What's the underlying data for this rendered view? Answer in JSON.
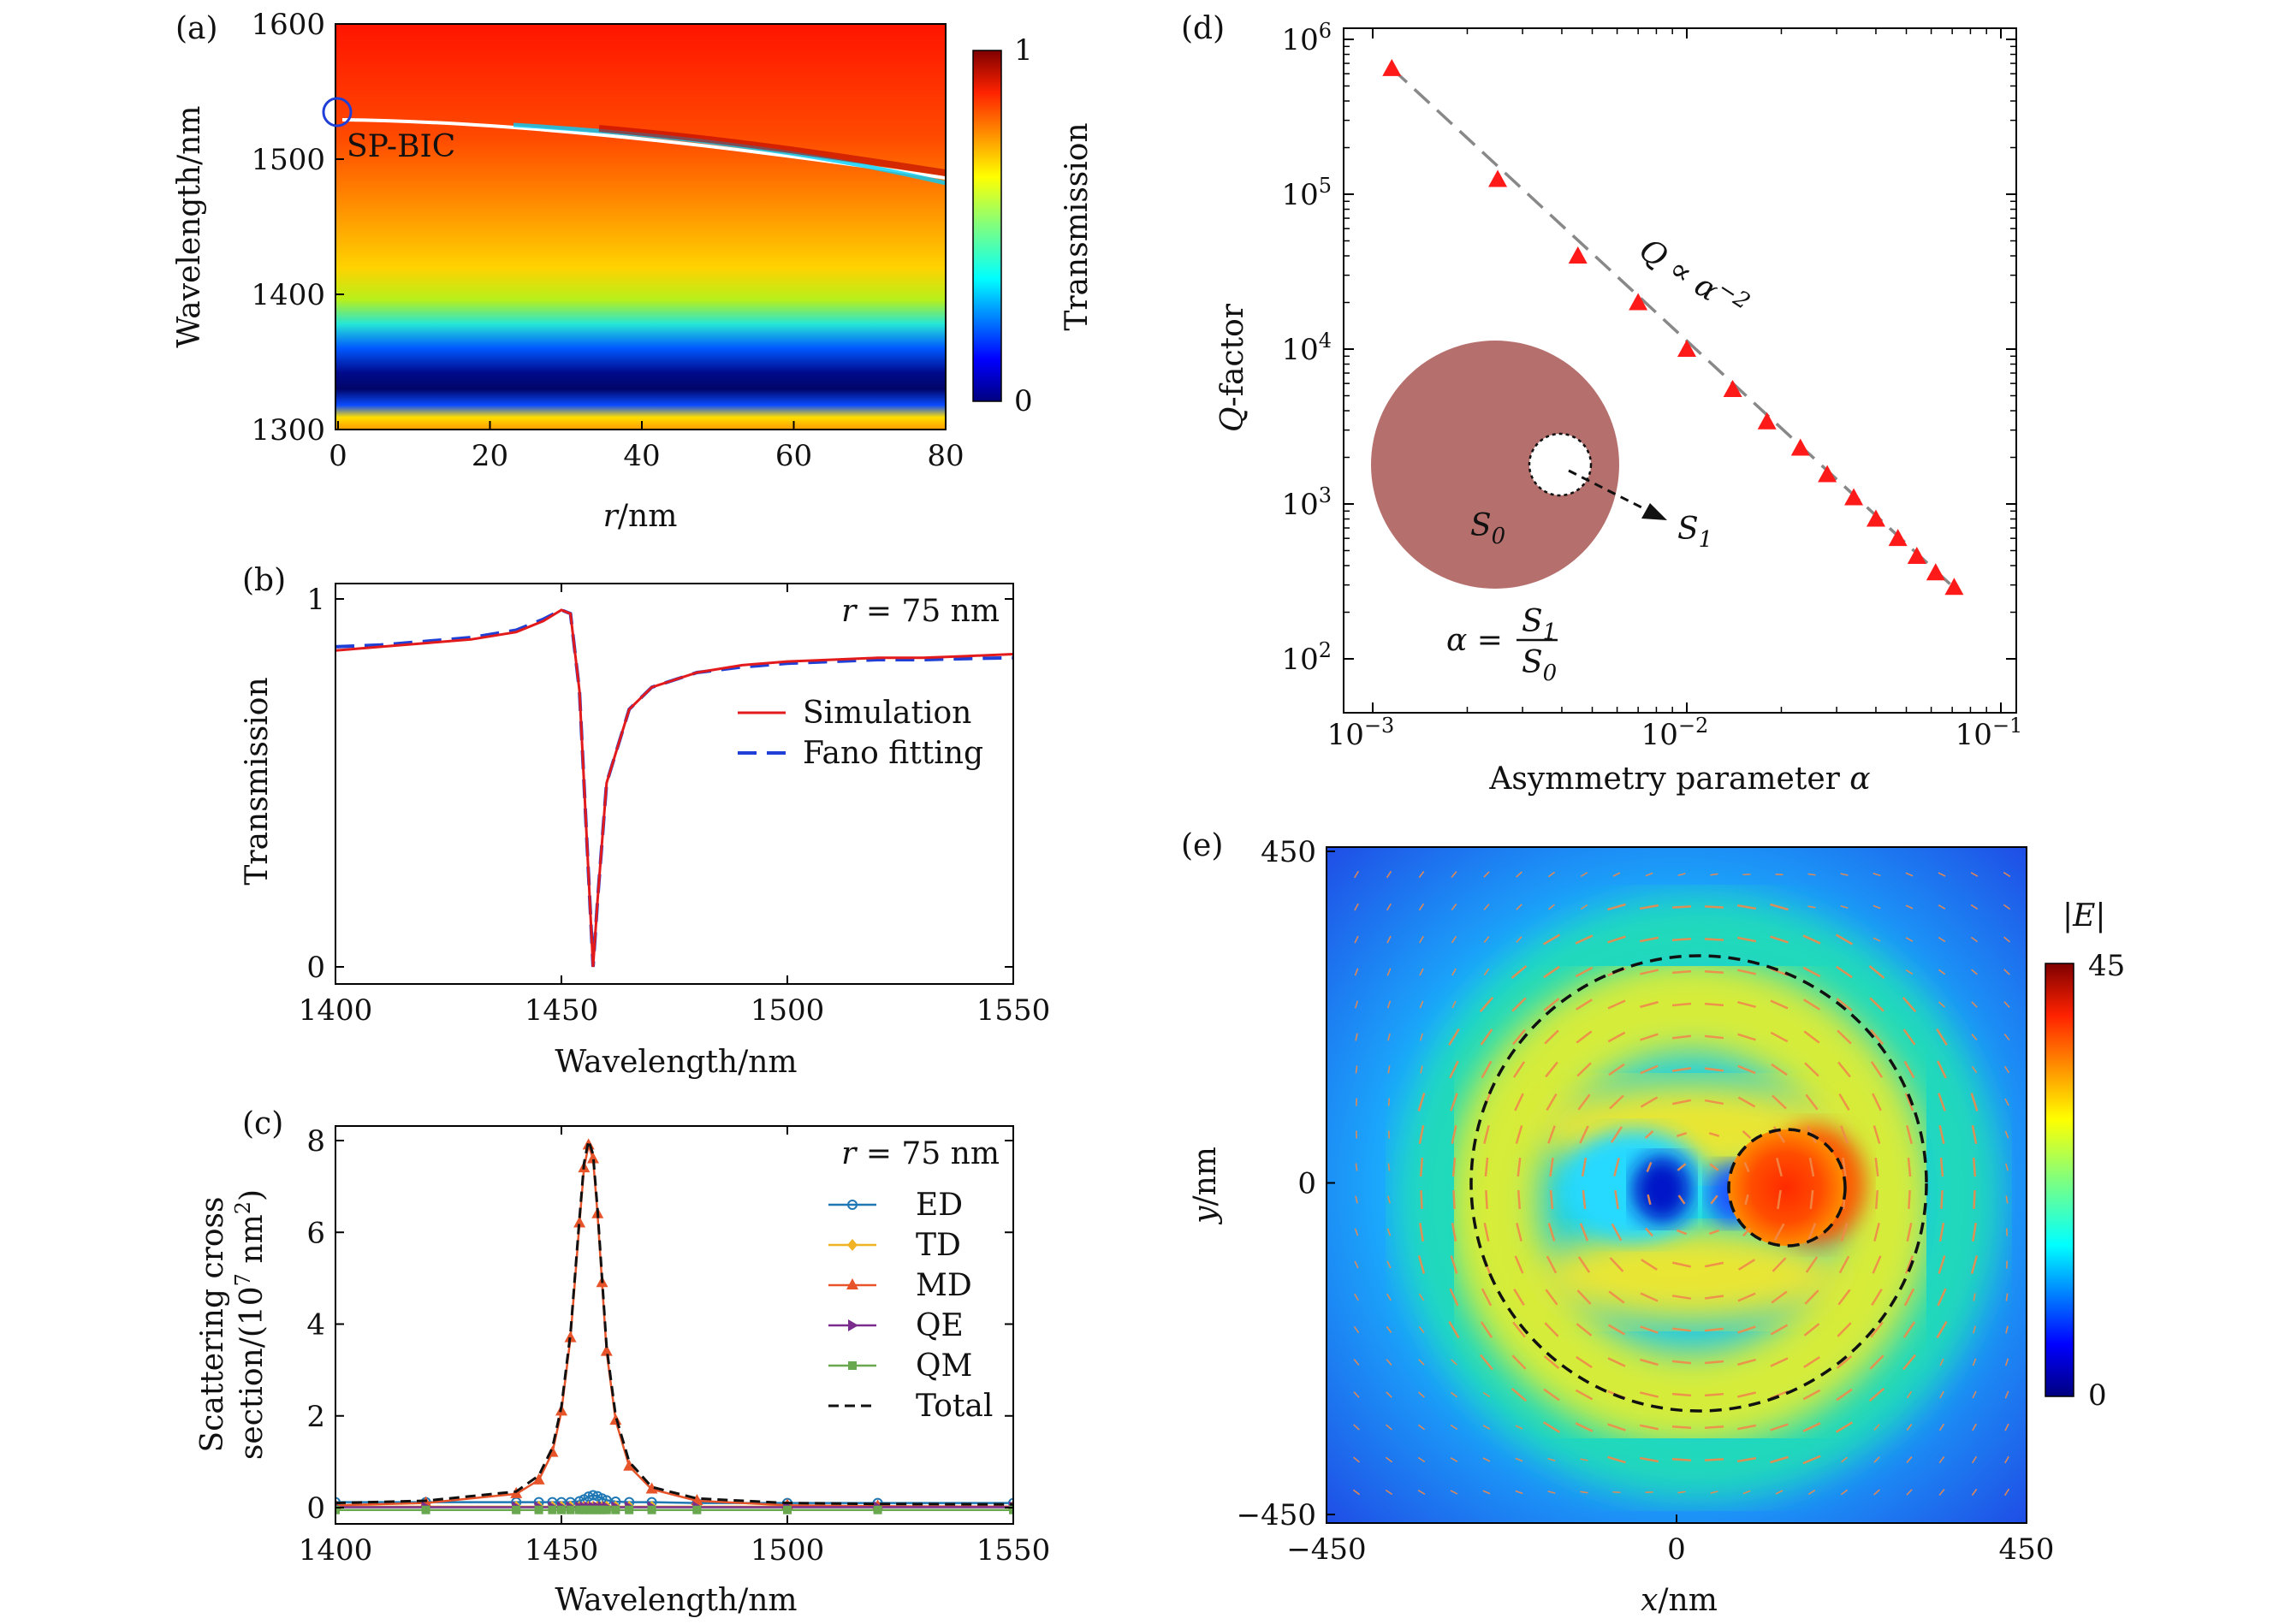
{
  "panels": {
    "a": {
      "label": "(a)",
      "xlabel_var": "r",
      "xlabel_unit": "/nm",
      "ylabel": "Wavelength/nm",
      "xticks": [
        "0",
        "20",
        "40",
        "60",
        "80"
      ],
      "yticks": [
        "1300",
        "1400",
        "1500",
        "1600"
      ],
      "colorbar_label": "Transmission",
      "colorbar_ticks": [
        "1",
        "0"
      ],
      "annotation": "SP-BIC"
    },
    "b": {
      "label": "(b)",
      "xlabel": "Wavelength/nm",
      "ylabel": "Transmission",
      "xticks": [
        "1400",
        "1450",
        "1500",
        "1550"
      ],
      "yticks": [
        "1",
        "0"
      ],
      "annot_var": "r",
      "annot_val": " = 75 nm",
      "legend": [
        "Simulation",
        "Fano fitting"
      ]
    },
    "c": {
      "label": "(c)",
      "xlabel": "Wavelength/nm",
      "ylabel_1": "Scattering cross",
      "ylabel_2a": "section/(10",
      "ylabel_2exp": "7",
      "ylabel_2b": " nm",
      "ylabel_2exp2": "2",
      "ylabel_2c": ")",
      "xticks": [
        "1400",
        "1450",
        "1500",
        "1550"
      ],
      "yticks": [
        "0",
        "2",
        "4",
        "6",
        "8"
      ],
      "annot_var": "r",
      "annot_val": " = 75 nm",
      "legend": [
        "ED",
        "TD",
        "MD",
        "QE",
        "QM",
        "Total"
      ]
    },
    "d": {
      "label": "(d)",
      "xlabel_text": "Asymmetry parameter ",
      "xlabel_var": "α",
      "ylabel_var": "Q",
      "ylabel_text": "-factor",
      "xtick_base": "10",
      "xtick_exps": [
        "−3",
        "−2",
        "−1"
      ],
      "ytick_base": "10",
      "ytick_exps": [
        "2",
        "3",
        "4",
        "5",
        "6"
      ],
      "fit_label_a": "Q ∝ α",
      "fit_label_exp": "−2",
      "s0": "S",
      "s0_sub": "0",
      "s1": "S",
      "s1_sub": "1",
      "alpha_eq": "α =",
      "frac_num": "S",
      "frac_num_sub": "1",
      "frac_den": "S",
      "frac_den_sub": "0"
    },
    "e": {
      "label": "(e)",
      "xlabel_var": "x",
      "xlabel_unit": "/nm",
      "ylabel_var": "y",
      "ylabel_unit": "/nm",
      "xticks": [
        "−450",
        "0",
        "450"
      ],
      "yticks": [
        "450",
        "0",
        "−450"
      ],
      "colorbar_label": "|E|",
      "colorbar_ticks": [
        "45",
        "0"
      ]
    }
  },
  "colors": {
    "simulation": "#e31a1c",
    "fano": "#1f3fd6",
    "ED": "#1f77b4",
    "TD": "#f0b323",
    "MD": "#e8542a",
    "QE": "#7b2d8e",
    "QM": "#6aa84f",
    "total": "#111111",
    "marker": "#ff1a1a",
    "disk": "#b5706e",
    "arrows": "#f08a4b"
  },
  "chart_data": [
    {
      "panel": "a",
      "type": "heatmap",
      "xlabel": "r/nm",
      "ylabel": "Wavelength/nm",
      "zlabel": "Transmission",
      "xlim": [
        0,
        80
      ],
      "ylim": [
        1300,
        1600
      ],
      "zlim": [
        0,
        1
      ],
      "bic_point": {
        "r": 0,
        "wavelength": 1535
      },
      "resonance_curve": {
        "r": [
          0,
          20,
          40,
          60,
          80
        ],
        "wavelength": [
          1535,
          1530,
          1517,
          1502,
          1483
        ]
      },
      "low_transmission_band": {
        "r": [
          0,
          40,
          80
        ],
        "wavelength": [
          1330,
          1325,
          1322
        ]
      }
    },
    {
      "panel": "b",
      "type": "line",
      "xlabel": "Wavelength/nm",
      "ylabel": "Transmission",
      "xlim": [
        1400,
        1550
      ],
      "ylim": [
        0,
        1
      ],
      "x": [
        1400,
        1410,
        1420,
        1430,
        1440,
        1446,
        1450,
        1452,
        1454,
        1456,
        1457,
        1458,
        1460,
        1465,
        1470,
        1480,
        1490,
        1500,
        1510,
        1520,
        1530,
        1540,
        1550
      ],
      "series": [
        {
          "name": "Simulation",
          "values": [
            0.86,
            0.87,
            0.88,
            0.89,
            0.91,
            0.94,
            0.97,
            0.96,
            0.75,
            0.25,
            0.0,
            0.18,
            0.5,
            0.7,
            0.76,
            0.8,
            0.82,
            0.83,
            0.835,
            0.84,
            0.84,
            0.845,
            0.85
          ]
        },
        {
          "name": "Fano fitting",
          "values": [
            0.87,
            0.875,
            0.885,
            0.895,
            0.915,
            0.945,
            0.97,
            0.96,
            0.75,
            0.25,
            0.0,
            0.18,
            0.5,
            0.7,
            0.76,
            0.8,
            0.815,
            0.825,
            0.83,
            0.835,
            0.835,
            0.838,
            0.84
          ]
        }
      ]
    },
    {
      "panel": "c",
      "type": "line",
      "xlabel": "Wavelength/nm",
      "ylabel": "Scattering cross section/(10^7 nm^2)",
      "xlim": [
        1400,
        1550
      ],
      "ylim": [
        0,
        8
      ],
      "x": [
        1400,
        1420,
        1440,
        1445,
        1448,
        1450,
        1452,
        1454,
        1455,
        1456,
        1457,
        1458,
        1459,
        1460,
        1462,
        1465,
        1470,
        1480,
        1500,
        1520,
        1550
      ],
      "series": [
        {
          "name": "ED",
          "values": [
            0.12,
            0.12,
            0.12,
            0.12,
            0.12,
            0.12,
            0.12,
            0.14,
            0.18,
            0.24,
            0.27,
            0.25,
            0.2,
            0.16,
            0.13,
            0.12,
            0.12,
            0.1,
            0.1,
            0.1,
            0.1
          ]
        },
        {
          "name": "TD",
          "values": [
            0.02,
            0.02,
            0.02,
            0.02,
            0.02,
            0.02,
            0.02,
            0.02,
            0.02,
            0.02,
            0.02,
            0.02,
            0.02,
            0.02,
            0.02,
            0.02,
            0.02,
            0.02,
            0.02,
            0.02,
            0.02
          ]
        },
        {
          "name": "MD",
          "values": [
            0.05,
            0.1,
            0.3,
            0.6,
            1.2,
            2.1,
            3.7,
            6.2,
            7.4,
            7.9,
            7.6,
            6.4,
            4.9,
            3.4,
            1.9,
            0.9,
            0.4,
            0.15,
            0.05,
            0.03,
            0.02
          ]
        },
        {
          "name": "QE",
          "values": [
            0.01,
            0.01,
            0.01,
            0.01,
            0.01,
            0.01,
            0.01,
            0.01,
            0.01,
            0.01,
            0.01,
            0.01,
            0.01,
            0.01,
            0.01,
            0.01,
            0.01,
            0.01,
            0.01,
            0.01,
            0.01
          ]
        },
        {
          "name": "QM",
          "values": [
            -0.05,
            -0.05,
            -0.05,
            -0.05,
            -0.05,
            -0.05,
            -0.05,
            -0.05,
            -0.05,
            -0.05,
            -0.05,
            -0.05,
            -0.05,
            -0.05,
            -0.05,
            -0.05,
            -0.05,
            -0.05,
            -0.05,
            -0.05,
            -0.05
          ]
        },
        {
          "name": "Total",
          "values": [
            0.1,
            0.15,
            0.35,
            0.7,
            1.3,
            2.2,
            3.8,
            6.3,
            7.5,
            8.0,
            7.7,
            6.5,
            5.0,
            3.5,
            2.0,
            1.0,
            0.45,
            0.2,
            0.1,
            0.08,
            0.07
          ]
        }
      ]
    },
    {
      "panel": "d",
      "type": "scatter",
      "xscale": "log",
      "yscale": "log",
      "xlabel": "Asymmetry parameter α",
      "ylabel": "Q-factor",
      "xlim": [
        0.0008,
        0.12
      ],
      "ylim": [
        70,
        1500000
      ],
      "x": [
        0.00115,
        0.0025,
        0.0045,
        0.007,
        0.01,
        0.014,
        0.018,
        0.023,
        0.028,
        0.034,
        0.04,
        0.047,
        0.054,
        0.062,
        0.071
      ],
      "y": [
        650000,
        125000,
        40000,
        20000,
        10000,
        5500,
        3400,
        2300,
        1550,
        1100,
        800,
        600,
        460,
        360,
        290
      ],
      "fit": {
        "x": [
          0.00115,
          0.072
        ],
        "y": [
          650000,
          280
        ]
      }
    },
    {
      "panel": "e",
      "type": "heatmap",
      "xlabel": "x/nm",
      "ylabel": "y/nm",
      "zlabel": "|E|",
      "xlim": [
        -450,
        450
      ],
      "ylim": [
        -450,
        450
      ],
      "zlim": [
        0,
        45
      ],
      "outer_circle_radius": 310,
      "inner_hole_center": [
        160,
        0
      ],
      "inner_hole_radius": 68,
      "field_hotspot": [
        180,
        0
      ]
    }
  ]
}
